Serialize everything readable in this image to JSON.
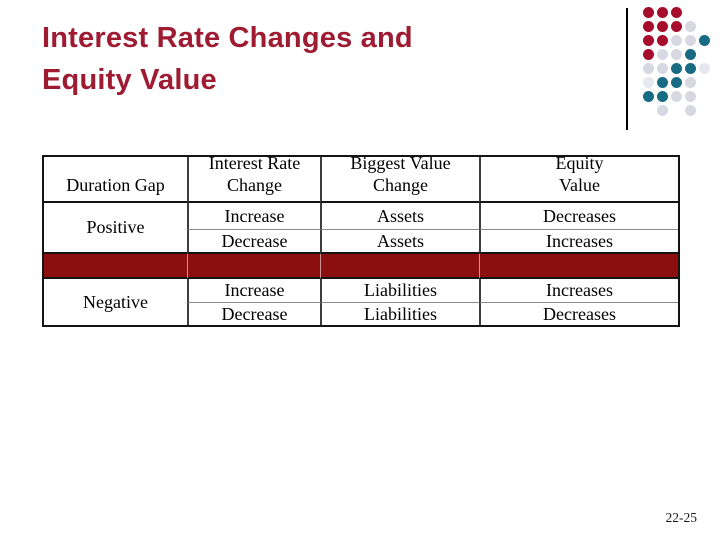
{
  "slide": {
    "title_lines": [
      "Interest Rate Changes and",
      "Equity Value"
    ],
    "page_number": "22-25"
  },
  "colors": {
    "title_maroon": "#9E1B32",
    "separator_band": "#8C0F0F",
    "dot_red": "#A60C2B",
    "dot_teal": "#176C84",
    "dot_gray": "#D8D8E2",
    "dot_gray_light": "#E7E7EF"
  },
  "decor": {
    "dot_pattern": [
      "RRR..",
      "RRRG.",
      "RRGGT",
      "RGGT.",
      "GGTTL",
      "LTTG.",
      "TTGG.",
      ".G.G."
    ]
  },
  "table": {
    "headers": [
      "Duration Gap",
      "Interest Rate\nChange",
      "Biggest Value\nChange",
      "Equity\nValue"
    ],
    "groups": [
      {
        "gap": "Positive",
        "rows": [
          {
            "rate_change": "Increase",
            "value_change": "Assets",
            "equity_value": "Decreases"
          },
          {
            "rate_change": "Decrease",
            "value_change": "Assets",
            "equity_value": "Increases"
          }
        ]
      },
      {
        "gap": "Negative",
        "rows": [
          {
            "rate_change": "Increase",
            "value_change": "Liabilities",
            "equity_value": "Increases"
          },
          {
            "rate_change": "Decrease",
            "value_change": "Liabilities",
            "equity_value": "Decreases"
          }
        ]
      }
    ]
  }
}
